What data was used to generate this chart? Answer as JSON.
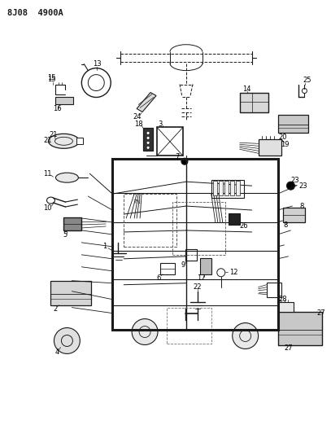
{
  "title": "8J08 4900A",
  "bg_color": "#ffffff",
  "line_color": "#1a1a1a",
  "fig_width": 4.07,
  "fig_height": 5.33,
  "dpi": 100
}
